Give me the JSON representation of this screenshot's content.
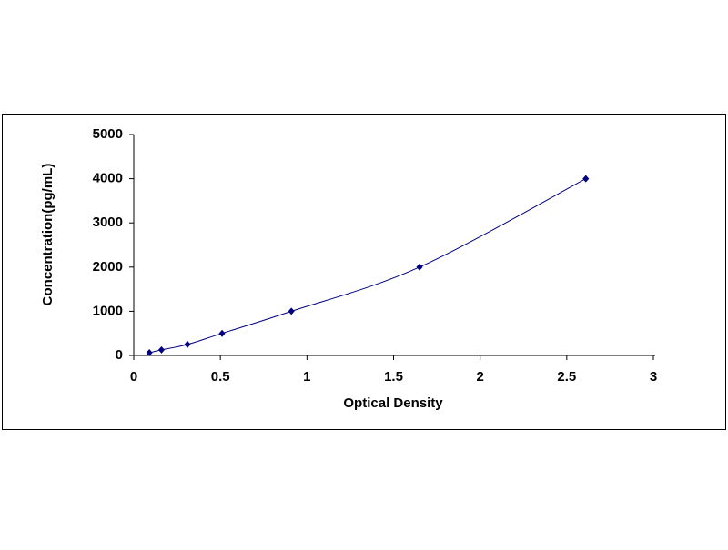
{
  "chart_data": {
    "type": "line",
    "smooth": true,
    "marker": "diamond",
    "x_label": "Optical Density",
    "y_label": "Concentration(pg/mL)",
    "x": [
      0.09,
      0.16,
      0.31,
      0.51,
      0.91,
      1.65,
      2.61
    ],
    "values": [
      62.5,
      125,
      250,
      500,
      1000,
      2000,
      4000
    ],
    "color": "#000080",
    "xlim": [
      0,
      3
    ],
    "xticks": [
      0,
      0.5,
      1,
      1.5,
      2,
      2.5,
      3
    ],
    "ylim": [
      0,
      5000
    ],
    "yticks": [
      0,
      1000,
      2000,
      3000,
      4000,
      5000
    ],
    "grid": false
  }
}
